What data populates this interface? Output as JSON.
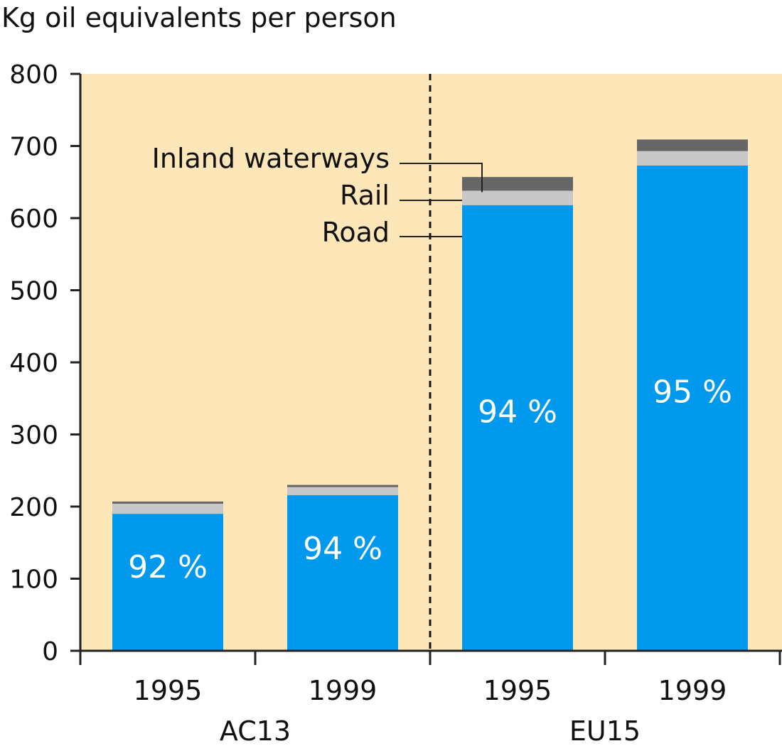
{
  "chart_data": {
    "type": "bar",
    "stacked": true,
    "title": "",
    "ylabel": "Kg oil equivalents per person",
    "xlabel": "",
    "ylim": [
      0,
      800
    ],
    "yticks": [
      0,
      100,
      200,
      300,
      400,
      500,
      600,
      700,
      800
    ],
    "groups": [
      "AC13",
      "EU15"
    ],
    "categories": [
      {
        "label": "1995",
        "group": "AC13"
      },
      {
        "label": "1999",
        "group": "AC13"
      },
      {
        "label": "1995",
        "group": "EU15"
      },
      {
        "label": "1999",
        "group": "EU15"
      }
    ],
    "series": [
      {
        "name": "Road",
        "color": "#0099ee",
        "values": [
          190,
          216,
          618,
          673
        ]
      },
      {
        "name": "Rail",
        "color": "#c8c8c8",
        "values": [
          14,
          11,
          20,
          20
        ]
      },
      {
        "name": "Inland waterways",
        "color": "#666666",
        "values": [
          3,
          3,
          19,
          16
        ]
      }
    ],
    "road_share_labels": [
      "92 %",
      "94 %",
      "94 %",
      "95 %"
    ],
    "background_color": "#fde6b8",
    "divider": "dashed line between AC13 and EU15"
  }
}
